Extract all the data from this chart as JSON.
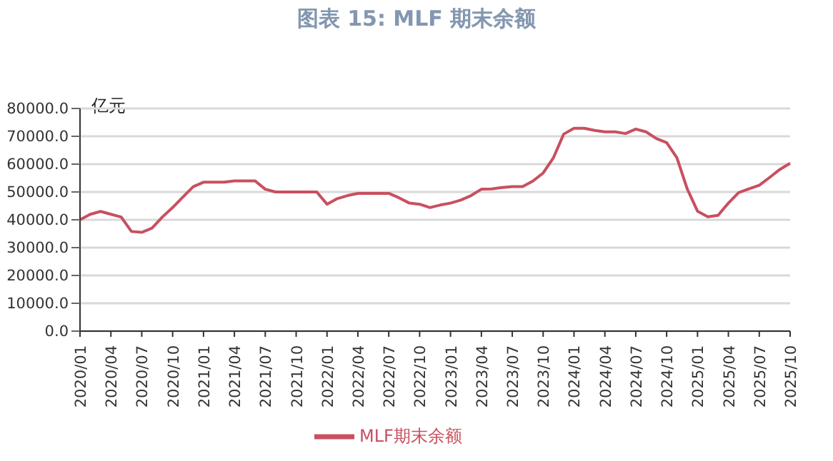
{
  "chart_data": {
    "type": "line",
    "title": "图表 15: MLF 期末余额",
    "ylabel": "亿元",
    "categories": [
      "2020/01",
      null,
      null,
      "2020/04",
      null,
      null,
      "2020/07",
      null,
      null,
      "2020/10",
      null,
      null,
      "2021/01",
      null,
      null,
      "2021/04",
      null,
      null,
      "2021/07",
      null,
      null,
      "2021/10",
      null,
      null,
      "2022/01",
      null,
      null,
      "2022/04",
      null,
      null,
      "2022/07",
      null,
      null,
      "2022/10",
      null,
      null,
      "2023/01",
      null,
      null,
      "2023/04",
      null,
      null,
      "2023/07",
      null,
      null,
      "2023/10",
      null,
      null,
      "2024/01",
      null,
      null,
      "2024/04",
      null,
      null,
      "2024/07",
      null,
      null,
      "2024/10",
      null,
      null,
      "2025/01",
      null,
      null,
      "2025/04",
      null,
      null,
      "2025/07",
      null,
      null,
      "2025/10"
    ],
    "series": [
      {
        "name": "MLF期末余额",
        "color": "#c8505f",
        "values": [
          40000,
          42000,
          43000,
          42000,
          41000,
          35800,
          35500,
          37000,
          41000,
          44400,
          48200,
          51900,
          53500,
          53500,
          53500,
          54000,
          54000,
          54000,
          51000,
          50000,
          50000,
          50000,
          50000,
          50000,
          45600,
          47600,
          48700,
          49500,
          49500,
          49500,
          49500,
          47900,
          46000,
          45600,
          44400,
          45300,
          46000,
          47100,
          48700,
          51000,
          51100,
          51600,
          51900,
          51900,
          53900,
          56800,
          62300,
          70800,
          72900,
          72900,
          72100,
          71600,
          71600,
          71000,
          72600,
          71600,
          69200,
          67700,
          62300,
          51100,
          43100,
          41100,
          41600,
          46000,
          49800,
          51100,
          52400,
          55200,
          58100,
          60300
        ]
      }
    ],
    "ylim": [
      0,
      80000
    ],
    "yticks": [
      {
        "value": 0,
        "label": "0.0"
      },
      {
        "value": 10000,
        "label": "10000.0"
      },
      {
        "value": 20000,
        "label": "20000.0"
      },
      {
        "value": 30000,
        "label": "30000.0"
      },
      {
        "value": 40000,
        "label": "40000.0"
      },
      {
        "value": 50000,
        "label": "50000.0"
      },
      {
        "value": 60000,
        "label": "60000.0"
      },
      {
        "value": 70000,
        "label": "70000.0"
      },
      {
        "value": 80000,
        "label": "80000.0"
      }
    ],
    "grid": "y",
    "legend": "bottom",
    "marker": "none",
    "line_style": "solid"
  }
}
